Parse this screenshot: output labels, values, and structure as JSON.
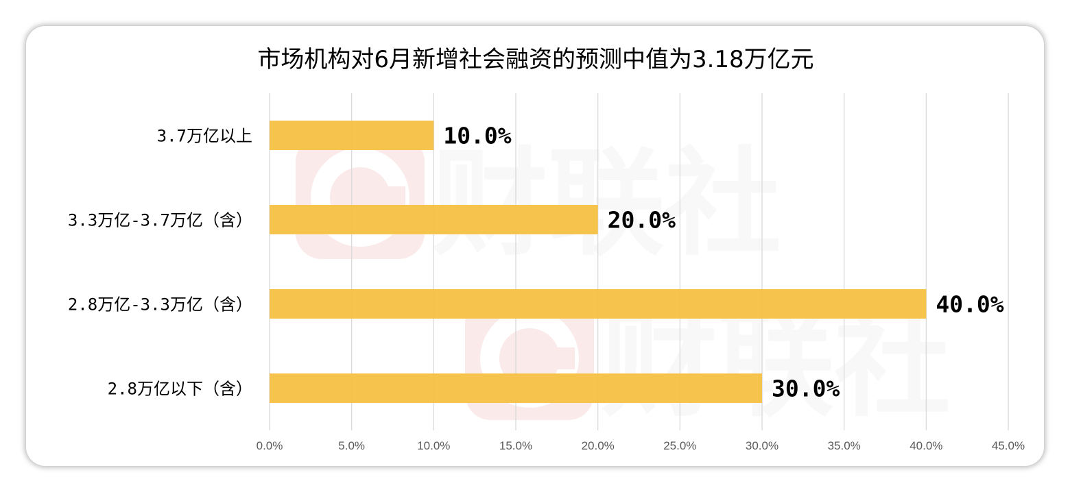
{
  "chart_data": {
    "type": "bar",
    "orientation": "horizontal",
    "title": "市场机构对6月新增社会融资的预测中值为3.18万亿元",
    "categories": [
      "3.7万亿以上",
      "3.3万亿-3.7万亿（含）",
      "2.8万亿-3.3万亿（含）",
      "2.8万亿以下（含）"
    ],
    "values": [
      10.0,
      20.0,
      40.0,
      30.0
    ],
    "data_labels": [
      "10.0%",
      "20.0%",
      "40.0%",
      "30.0%"
    ],
    "xticks": [
      "0.0%",
      "5.0%",
      "10.0%",
      "15.0%",
      "20.0%",
      "25.0%",
      "30.0%",
      "35.0%",
      "40.0%",
      "45.0%"
    ],
    "xlim": [
      0,
      45
    ],
    "grid": true,
    "xlabel": "",
    "ylabel": "",
    "colors": {
      "bar": "#f6c143",
      "grid": "#d9d9d9"
    }
  },
  "watermark": {
    "text": "财联社",
    "icon": "cls-logo-icon",
    "color": "#e8a0a0"
  }
}
